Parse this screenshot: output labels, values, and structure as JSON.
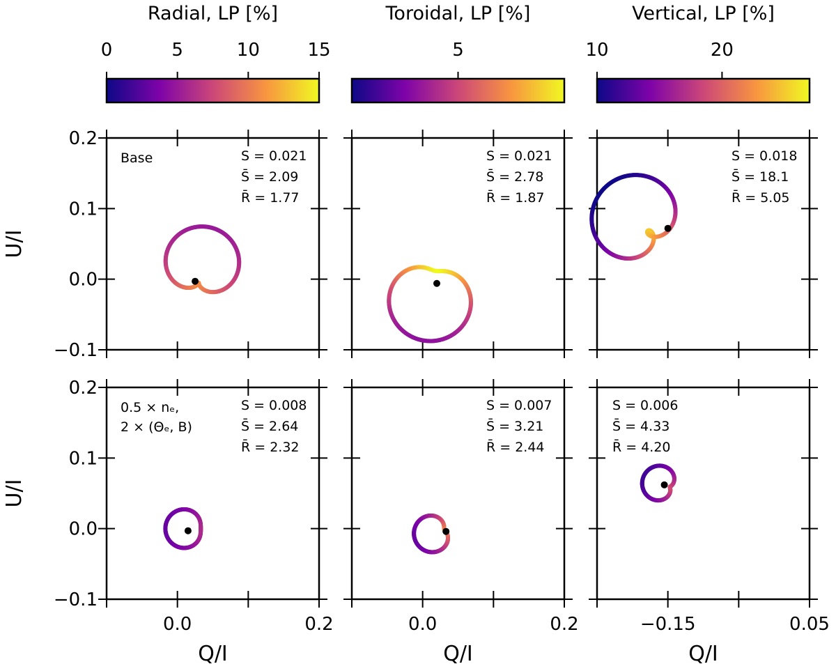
{
  "colorbars": [
    {
      "title": "Radial, LP [%]",
      "ticks": [
        "0",
        "5",
        "10",
        "15"
      ],
      "tick_values": [
        0,
        5,
        10,
        15
      ],
      "range": [
        0,
        15
      ]
    },
    {
      "title": "Toroidal, LP [%]",
      "ticks": [
        "5"
      ],
      "tick_values": [
        5
      ],
      "range": [
        0,
        10
      ]
    },
    {
      "title": "Vertical, LP [%]",
      "ticks": [
        "10",
        "20"
      ],
      "tick_values": [
        10,
        20
      ],
      "range": [
        10,
        27
      ]
    }
  ],
  "axes_labels": {
    "y": "U/I",
    "x": "Q/I"
  },
  "y_ticks": [
    "0.2",
    "0.1",
    "0.0",
    "−0.1"
  ],
  "x_tick_labels": [
    [
      "0.0",
      "0.2"
    ],
    [
      "0.0",
      "0.2"
    ],
    [
      "−0.15",
      "0.05"
    ]
  ],
  "colormap": "plasma",
  "chart_data": [
    {
      "type": "line",
      "panel": "row1-radial",
      "note": "Base",
      "stats": {
        "S": "S = 0.021",
        "Sbar": "S̄ = 2.09",
        "Rbar": "R̄ = 1.77"
      },
      "xlim": [
        -0.1,
        0.2
      ],
      "ylim": [
        -0.1,
        0.2
      ],
      "centroid": [
        0.025,
        -0.003
      ],
      "curve": {
        "kind": "limacon",
        "center": [
          0.03,
          -0.005
        ],
        "a": 0.04,
        "b": 0.04,
        "phase_deg": 80,
        "turns": 2,
        "lp_min": 5,
        "lp_max": 11
      }
    },
    {
      "type": "line",
      "panel": "row1-toroidal",
      "note": "",
      "stats": {
        "S": "S = 0.021",
        "Sbar": "S̄ = 2.78",
        "Rbar": "R̄ = 1.87"
      },
      "xlim": [
        -0.1,
        0.2
      ],
      "ylim": [
        -0.1,
        0.2
      ],
      "centroid": [
        0.02,
        -0.006
      ],
      "curve": {
        "kind": "limacon",
        "center": [
          0.015,
          -0.005
        ],
        "a": 0.05,
        "b": 0.033,
        "phase_deg": 260,
        "turns": 2,
        "lp_min": 3,
        "lp_max": 10
      }
    },
    {
      "type": "line",
      "panel": "row1-vertical",
      "note": "",
      "stats": {
        "S": "S = 0.018",
        "Sbar": "S̄ = 18.1",
        "Rbar": "R̄ = 5.05"
      },
      "xlim": [
        -0.25,
        0.05
      ],
      "ylim": [
        -0.1,
        0.2
      ],
      "centroid": [
        -0.15,
        0.072
      ],
      "curve": {
        "kind": "limacon",
        "center": [
          -0.17,
          0.06
        ],
        "a": 0.043,
        "b": 0.055,
        "phase_deg": 135,
        "turns": 2,
        "lp_min": 10,
        "lp_max": 25
      }
    },
    {
      "type": "line",
      "panel": "row2-radial",
      "note_lines": [
        "0.5 × nₑ,",
        "2 × (Θₑ, B)"
      ],
      "stats": {
        "S": "S = 0.008",
        "Sbar": "S̄ = 2.64",
        "Rbar": "R̄ = 2.32"
      },
      "xlim": [
        -0.1,
        0.2
      ],
      "ylim": [
        -0.1,
        0.2
      ],
      "centroid": [
        0.015,
        -0.003
      ],
      "curve": {
        "kind": "limacon",
        "center": [
          0.02,
          0.0
        ],
        "a": 0.025,
        "b": 0.012,
        "phase_deg": 180,
        "turns": 2,
        "lp_min": 3,
        "lp_max": 6
      }
    },
    {
      "type": "line",
      "panel": "row2-toroidal",
      "note": "",
      "stats": {
        "S": "S = 0.007",
        "Sbar": "S̄ = 3.21",
        "Rbar": "R̄ = 2.44"
      },
      "xlim": [
        -0.1,
        0.2
      ],
      "ylim": [
        -0.1,
        0.2
      ],
      "centroid": [
        0.033,
        -0.004
      ],
      "curve": {
        "kind": "limacon",
        "center": [
          0.025,
          -0.003
        ],
        "a": 0.022,
        "b": 0.016,
        "phase_deg": 200,
        "turns": 2,
        "lp_min": 2,
        "lp_max": 7
      }
    },
    {
      "type": "line",
      "panel": "row2-vertical",
      "note": "",
      "stats": {
        "S": "S = 0.006",
        "Sbar": "S̄ = 4.33",
        "Rbar": "R̄ = 4.20"
      },
      "xlim": [
        -0.25,
        0.05
      ],
      "ylim": [
        -0.1,
        0.2
      ],
      "centroid": [
        -0.155,
        0.062
      ],
      "curve": {
        "kind": "limacon",
        "center": [
          -0.15,
          0.06
        ],
        "a": 0.02,
        "b": 0.017,
        "phase_deg": 160,
        "turns": 2,
        "lp_min": 12,
        "lp_max": 19
      }
    }
  ]
}
